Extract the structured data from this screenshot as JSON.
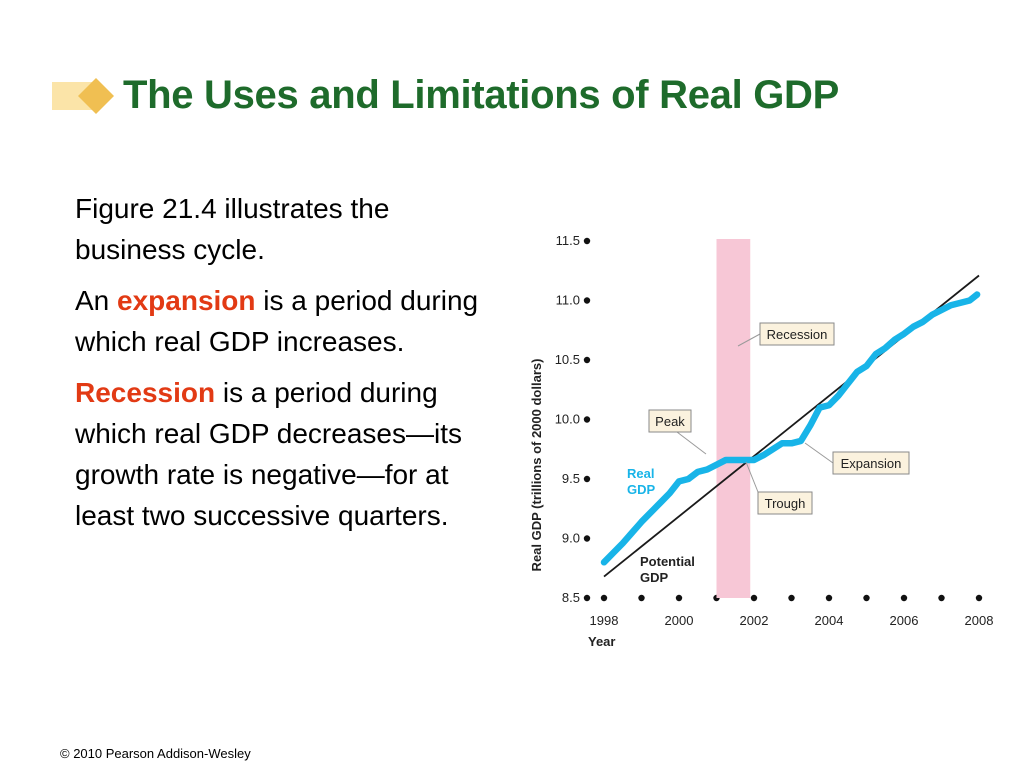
{
  "slide": {
    "title": "The Uses and Limitations of Real GDP",
    "paragraphs": {
      "p1": "Figure 21.4 illustrates the business cycle.",
      "p2_pre": "An ",
      "p2_term": "expansion",
      "p2_post": " is a period during which real GDP increases.",
      "p3_term": "Recession",
      "p3_post": " is a period during which real GDP decreases—its growth rate is negative—for at least two successive quarters."
    },
    "copyright": "© 2010 Pearson Addison-Wesley"
  },
  "colors": {
    "title": "#1e6b2b",
    "highlight": "#e23a14",
    "real_gdp": "#18b4e8",
    "potential_gdp": "#1a1a1a",
    "recession_band": "#f7c7d6"
  },
  "chart_data": {
    "type": "line",
    "xlabel": "Year",
    "ylabel": "Real GDP (trillions of 2000 dollars)",
    "xlim": [
      1998,
      2008
    ],
    "ylim": [
      8.5,
      11.5
    ],
    "x_ticks": [
      1998,
      2000,
      2002,
      2004,
      2006,
      2008
    ],
    "x_tick_labels": [
      "1998",
      "2000",
      "2002",
      "2004",
      "2006",
      "2008"
    ],
    "y_ticks": [
      8.5,
      9.0,
      9.5,
      10.0,
      10.5,
      11.0,
      11.5
    ],
    "y_tick_labels": [
      "8.5",
      "9.0",
      "9.5",
      "10.0",
      "10.5",
      "11.0",
      "11.5"
    ],
    "recession": [
      2001.0,
      2001.9
    ],
    "series": [
      {
        "name": "Real GDP",
        "x": [
          1998.0,
          1998.25,
          1998.5,
          1998.75,
          1999.0,
          1999.25,
          1999.5,
          1999.75,
          2000.0,
          2000.25,
          2000.5,
          2000.75,
          2001.0,
          2001.25,
          2001.5,
          2001.75,
          2002.0,
          2002.25,
          2002.5,
          2002.75,
          2003.0,
          2003.25,
          2003.5,
          2003.75,
          2004.0,
          2004.25,
          2004.5,
          2004.75,
          2005.0,
          2005.25,
          2005.5,
          2005.75,
          2006.0,
          2006.25,
          2006.5,
          2006.75,
          2007.0,
          2007.25,
          2007.5,
          2007.75,
          2007.95
        ],
        "y": [
          8.8,
          8.88,
          8.96,
          9.05,
          9.14,
          9.22,
          9.3,
          9.38,
          9.48,
          9.5,
          9.56,
          9.58,
          9.62,
          9.66,
          9.66,
          9.66,
          9.66,
          9.7,
          9.75,
          9.8,
          9.8,
          9.82,
          9.95,
          10.1,
          10.12,
          10.2,
          10.3,
          10.4,
          10.45,
          10.55,
          10.6,
          10.67,
          10.72,
          10.78,
          10.82,
          10.88,
          10.92,
          10.96,
          10.98,
          11.0,
          11.05
        ]
      },
      {
        "name": "Potential GDP",
        "x": [
          1998.0,
          2008.0
        ],
        "y": [
          8.68,
          11.21
        ]
      }
    ],
    "annotations": [
      "Recession",
      "Peak",
      "Expansion",
      "Trough"
    ]
  }
}
